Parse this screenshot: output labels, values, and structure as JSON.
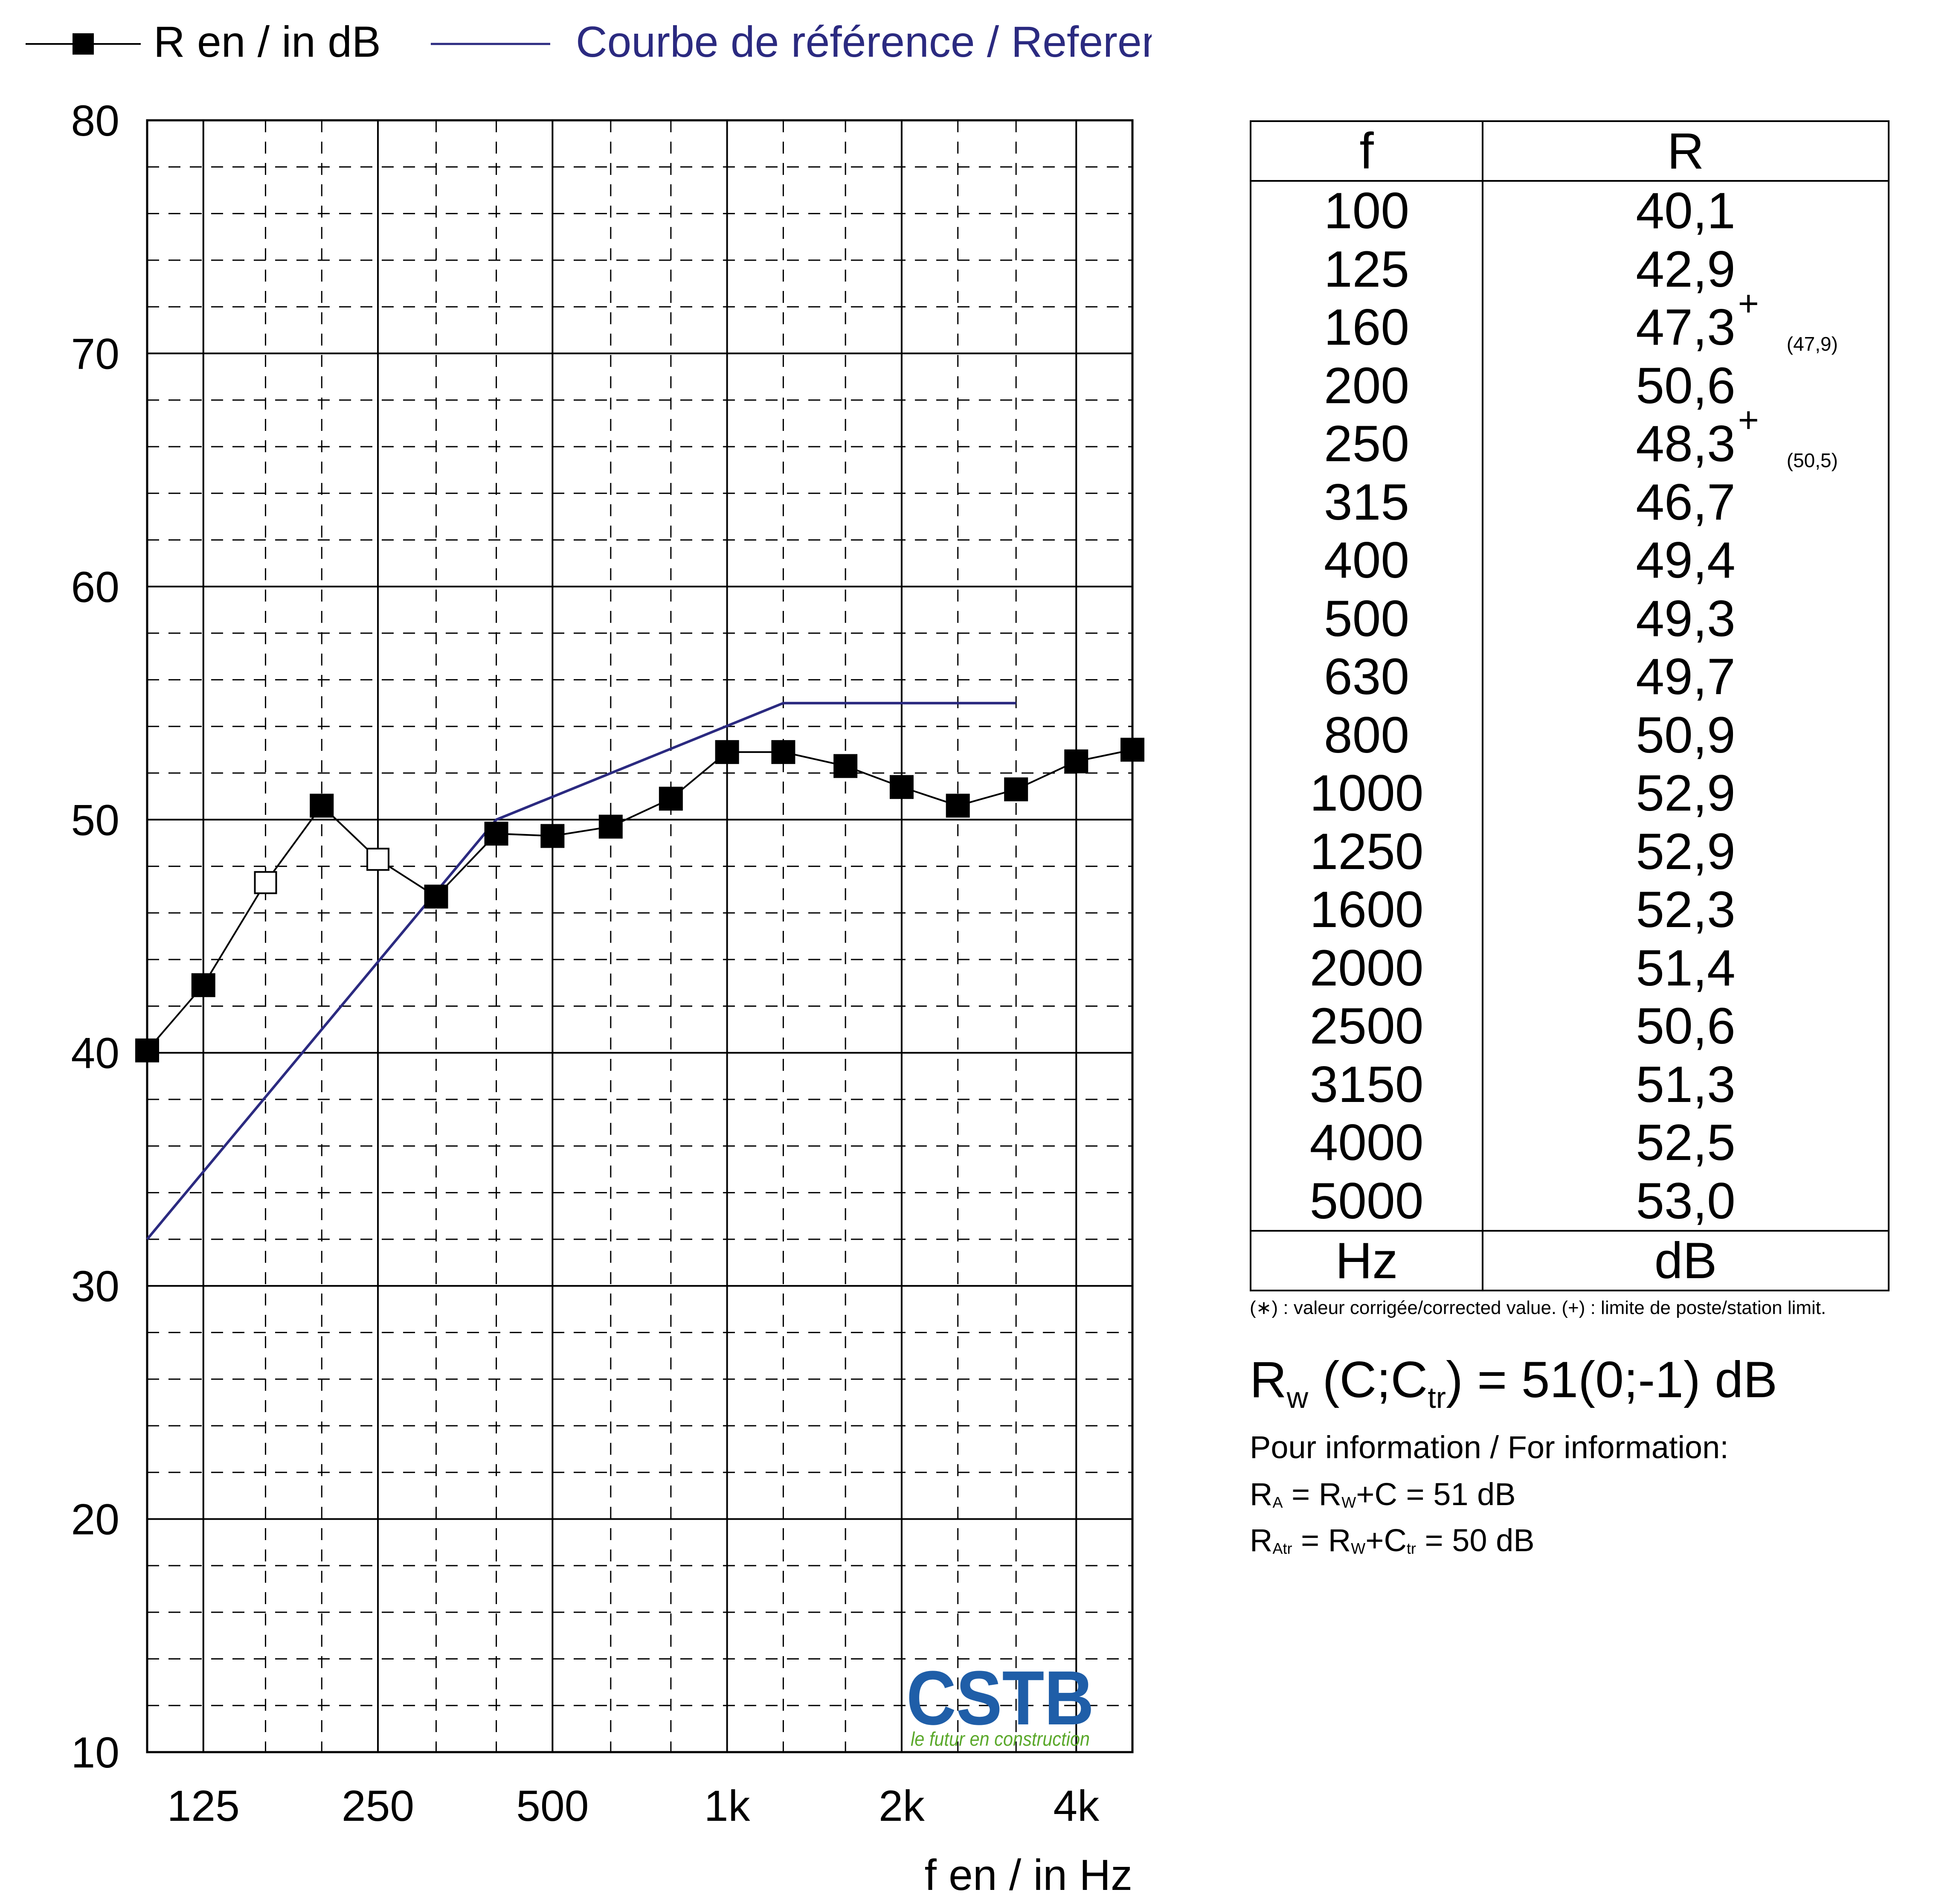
{
  "legend": {
    "measured_label": "R en / in dB",
    "reference_label": "Courbe de référence / Reference curve"
  },
  "colors": {
    "measured": "#000000",
    "reference": "#2b2a80",
    "logo_blue": "#1f5ea8",
    "logo_green": "#5aa82a"
  },
  "chart_data": {
    "type": "line",
    "xlabel": "f en / in Hz",
    "ylabel": "",
    "x_scale": "log (one-third octave bands)",
    "x": [
      100,
      125,
      160,
      200,
      250,
      315,
      400,
      500,
      630,
      800,
      1000,
      1250,
      1600,
      2000,
      2500,
      3150,
      4000,
      5000
    ],
    "x_tick_labels": [
      "125",
      "250",
      "500",
      "1k",
      "2k",
      "4k"
    ],
    "x_tick_values": [
      125,
      250,
      500,
      1000,
      2000,
      4000
    ],
    "ylim": [
      10,
      80
    ],
    "y_ticks": [
      10,
      20,
      30,
      40,
      50,
      60,
      70,
      80
    ],
    "grid": "major solid every 10 dB and at each octave; minor dashed every 2 dB and at each third-octave",
    "series": [
      {
        "name": "R en / in dB",
        "values": [
          40.1,
          42.9,
          47.3,
          50.6,
          48.3,
          46.7,
          49.4,
          49.3,
          49.7,
          50.9,
          52.9,
          52.9,
          52.3,
          51.4,
          50.6,
          51.3,
          52.5,
          53.0
        ],
        "markers": [
          "filled",
          "filled",
          "open",
          "filled",
          "open",
          "filled",
          "filled",
          "filled",
          "filled",
          "filled",
          "filled",
          "filled",
          "filled",
          "filled",
          "filled",
          "filled",
          "filled",
          "filled"
        ]
      },
      {
        "name": "Courbe de référence / Reference curve",
        "x": [
          100,
          400,
          1250,
          3150
        ],
        "values": [
          32,
          50,
          55,
          55
        ]
      }
    ]
  },
  "logo": {
    "name": "CSTB",
    "tagline": "le futur en construction"
  },
  "table": {
    "header_f": "f",
    "header_r": "R",
    "rows": [
      {
        "f": "100",
        "r": "40,1",
        "plus": "",
        "corr": ""
      },
      {
        "f": "125",
        "r": "42,9",
        "plus": "",
        "corr": ""
      },
      {
        "f": "160",
        "r": "47,3",
        "plus": "+",
        "corr": "(47,9)"
      },
      {
        "f": "200",
        "r": "50,6",
        "plus": "",
        "corr": ""
      },
      {
        "f": "250",
        "r": "48,3",
        "plus": "+",
        "corr": "(50,5)"
      },
      {
        "f": "315",
        "r": "46,7",
        "plus": "",
        "corr": ""
      },
      {
        "f": "400",
        "r": "49,4",
        "plus": "",
        "corr": ""
      },
      {
        "f": "500",
        "r": "49,3",
        "plus": "",
        "corr": ""
      },
      {
        "f": "630",
        "r": "49,7",
        "plus": "",
        "corr": ""
      },
      {
        "f": "800",
        "r": "50,9",
        "plus": "",
        "corr": ""
      },
      {
        "f": "1000",
        "r": "52,9",
        "plus": "",
        "corr": ""
      },
      {
        "f": "1250",
        "r": "52,9",
        "plus": "",
        "corr": ""
      },
      {
        "f": "1600",
        "r": "52,3",
        "plus": "",
        "corr": ""
      },
      {
        "f": "2000",
        "r": "51,4",
        "plus": "",
        "corr": ""
      },
      {
        "f": "2500",
        "r": "50,6",
        "plus": "",
        "corr": ""
      },
      {
        "f": "3150",
        "r": "51,3",
        "plus": "",
        "corr": ""
      },
      {
        "f": "4000",
        "r": "52,5",
        "plus": "",
        "corr": ""
      },
      {
        "f": "5000",
        "r": "53,0",
        "plus": "",
        "corr": ""
      }
    ],
    "footer_f": "Hz",
    "footer_r": "dB"
  },
  "footnote": "(∗) : valeur corrigée/corrected value. (+) : limite de poste/station limit.",
  "rating": {
    "R": "R",
    "w": "w",
    "open": " (C;C",
    "tr": "tr",
    "close": ") = 51(0;-1) dB"
  },
  "info": {
    "title": "Pour information / For information:",
    "ra_R": "R",
    "ra_sub": "A",
    "ra_eq": " = R",
    "ra_sub2": "W",
    "ra_rest": "+C = 51 dB",
    "ratr_R": "R",
    "ratr_sub": "Atr",
    "ratr_eq": " = R",
    "ratr_sub2": "W",
    "ratr_plus": "+C",
    "ratr_sub3": "tr",
    "ratr_rest": " = 50 dB"
  }
}
